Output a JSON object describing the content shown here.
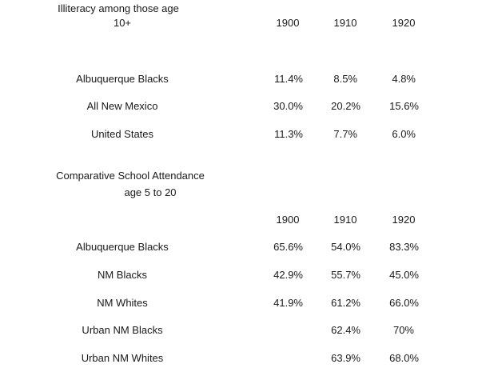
{
  "illiteracy": {
    "title_line1": "Illiteracy among those age",
    "title_line2": "10+",
    "years": [
      "1900",
      "1910",
      "1920"
    ],
    "rows": [
      {
        "label": "Albuquerque Blacks",
        "values": [
          "11.4%",
          "8.5%",
          "4.8%"
        ]
      },
      {
        "label": "All New Mexico",
        "values": [
          "30.0%",
          "20.2%",
          "15.6%"
        ]
      },
      {
        "label": "United States",
        "values": [
          "11.3%",
          "7.7%",
          "6.0%"
        ]
      }
    ]
  },
  "attendance": {
    "title_line1": "Comparative School Attendance",
    "title_line2": "age 5 to 20",
    "years": [
      "1900",
      "1910",
      "1920"
    ],
    "rows": [
      {
        "label": "Albuquerque Blacks",
        "values": [
          "65.6%",
          "54.0%",
          "83.3%"
        ]
      },
      {
        "label": "NM Blacks",
        "values": [
          "42.9%",
          "55.7%",
          "45.0%"
        ]
      },
      {
        "label": "NM Whites",
        "values": [
          "41.9%",
          "61.2%",
          "66.0%"
        ]
      },
      {
        "label": "Urban NM Blacks",
        "values": [
          "",
          "62.4%",
          "70%"
        ]
      },
      {
        "label": "Urban NM Whites",
        "values": [
          "",
          "63.9%",
          "68.0%"
        ]
      }
    ]
  }
}
